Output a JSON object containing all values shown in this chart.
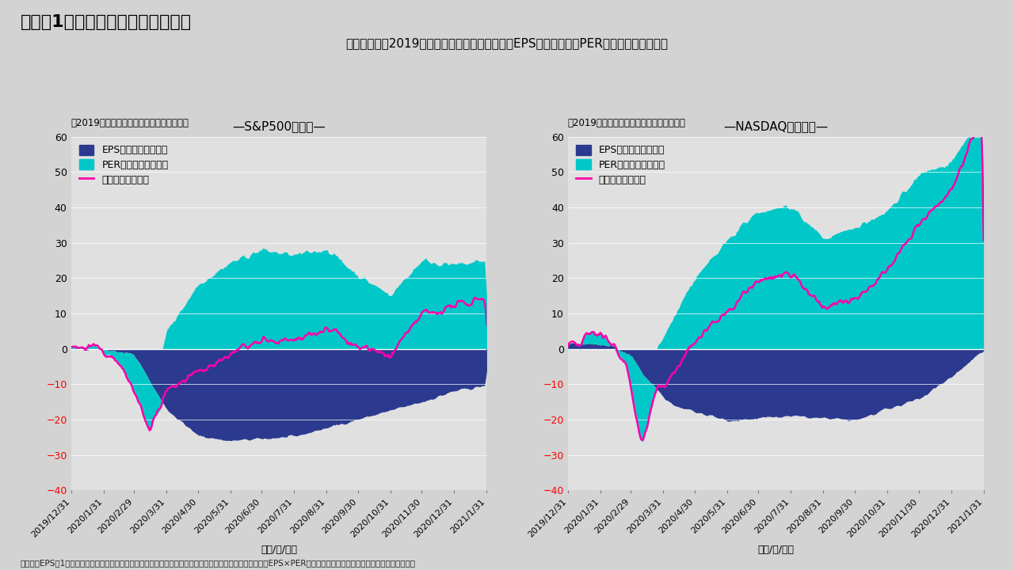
{
  "title": "（図表1）　米国株価上昇率の推移",
  "subtitle": "＜株価指数の2019年末からの累積変化幅を予想EPS変化寄与度とPER変化寄与度に分解＞",
  "sp500_title": "—S&P500種指数—",
  "nasdaq_title": "—NASDAQ総合指数—",
  "ylabel": "（2019年末からの累積変化率、ポイント）",
  "xlabel": "（年/月/日）",
  "note": "（注）　EPSは1年先までの利益の予想値に基づく。ブルームバーグ調べによるボトムアップベース。株価＝EPS×PER。　（出所）ブルームバーグよりインベスコ作成",
  "legend_eps": "EPSの変化による寄与",
  "legend_per": "PERの変化による寄与",
  "legend_line": "指数の累積変化率",
  "eps_color": "#2B3A8F",
  "per_color": "#00C8C8",
  "line_color": "#FF00AA",
  "background_color": "#D3D3D3",
  "plot_bg_color": "#E0E0E0",
  "ylim": [
    -40,
    60
  ],
  "yticks": [
    -40,
    -30,
    -20,
    -10,
    0,
    10,
    20,
    30,
    40,
    50,
    60
  ],
  "xtick_labels": [
    "2019/12/31",
    "2020/1/31",
    "2020/2/29",
    "2020/3/31",
    "2020/4/30",
    "2020/5/31",
    "2020/6/30",
    "2020/7/31",
    "2020/8/31",
    "2020/9/30",
    "2020/10/31",
    "2020/11/30",
    "2020/12/31",
    "2021/1/31"
  ]
}
